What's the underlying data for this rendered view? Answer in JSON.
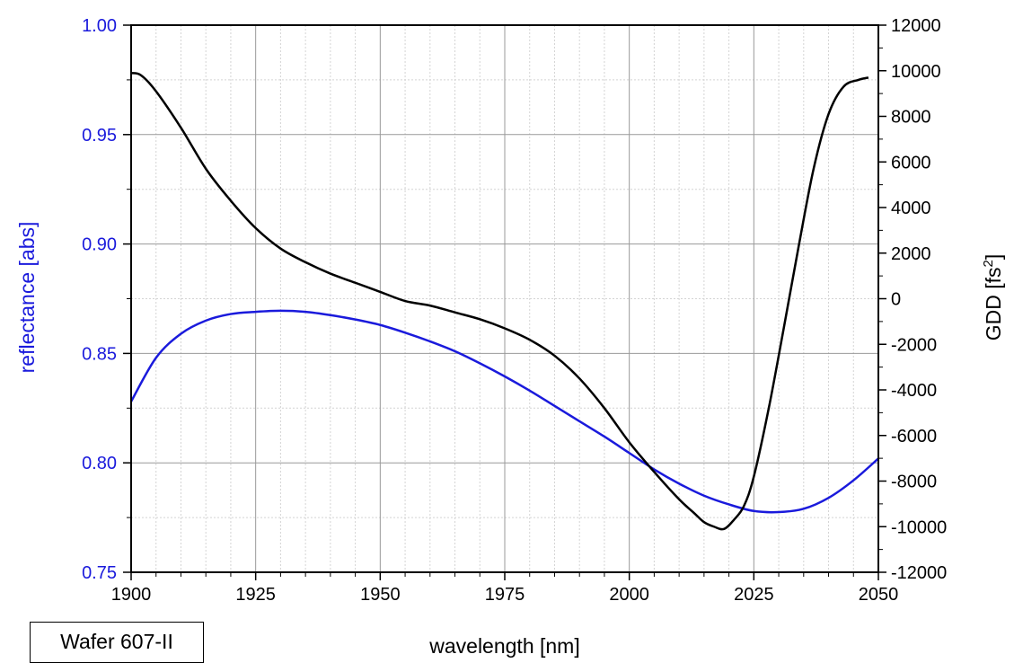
{
  "chart_data": {
    "type": "line",
    "title": "",
    "xlabel": "wavelength [nm]",
    "ylabel_left": "reflectance [abs]",
    "ylabel_right_base": "GDD [fs",
    "ylabel_right_sup": "2",
    "ylabel_right_tail": "]",
    "xlim": [
      1900,
      2050
    ],
    "ylim_left": [
      0.75,
      1.0
    ],
    "ylim_right": [
      -12000,
      12000
    ],
    "x_ticks": [
      1900,
      1925,
      1950,
      1975,
      2000,
      2025,
      2050
    ],
    "x_tick_labels": [
      "1900",
      "1925",
      "1950",
      "1975",
      "2000",
      "2025",
      "2050"
    ],
    "y_left_ticks": [
      0.75,
      0.8,
      0.85,
      0.9,
      0.95,
      1.0
    ],
    "y_left_tick_labels": [
      "0.75",
      "0.80",
      "0.85",
      "0.90",
      "0.95",
      "1.00"
    ],
    "y_right_ticks": [
      -12000,
      -10000,
      -8000,
      -6000,
      -4000,
      -2000,
      0,
      2000,
      4000,
      6000,
      8000,
      10000,
      12000
    ],
    "y_right_tick_labels": [
      "-12000",
      "-10000",
      "-8000",
      "-6000",
      "-4000",
      "-2000",
      "0",
      "2000",
      "4000",
      "6000",
      "8000",
      "10000",
      "12000"
    ],
    "grid": true,
    "series": [
      {
        "axis": "left",
        "color": "#1a1adc",
        "x": [
          1900,
          1905,
          1910,
          1915,
          1920,
          1925,
          1930,
          1935,
          1940,
          1945,
          1950,
          1955,
          1960,
          1965,
          1970,
          1975,
          1980,
          1985,
          1990,
          1995,
          2000,
          2005,
          2010,
          2015,
          2020,
          2025,
          2030,
          2035,
          2040,
          2045,
          2050
        ],
        "values": [
          0.828,
          0.848,
          0.859,
          0.865,
          0.868,
          0.869,
          0.8695,
          0.869,
          0.8675,
          0.8655,
          0.863,
          0.8595,
          0.8555,
          0.851,
          0.8455,
          0.8395,
          0.833,
          0.826,
          0.819,
          0.812,
          0.8045,
          0.797,
          0.7905,
          0.785,
          0.781,
          0.778,
          0.7775,
          0.779,
          0.784,
          0.792,
          0.802
        ]
      },
      {
        "axis": "right",
        "color": "#000000",
        "x": [
          1900,
          1902,
          1905,
          1910,
          1915,
          1920,
          1925,
          1930,
          1935,
          1940,
          1945,
          1950,
          1955,
          1960,
          1965,
          1970,
          1975,
          1980,
          1985,
          1990,
          1995,
          2000,
          2005,
          2010,
          2013,
          2015,
          2017,
          2019,
          2021,
          2023,
          2025,
          2028,
          2031,
          2034,
          2037,
          2040,
          2043,
          2046,
          2048
        ],
        "values": [
          9900,
          9800,
          9100,
          7500,
          5700,
          4300,
          3100,
          2200,
          1600,
          1100,
          700,
          300,
          -100,
          -300,
          -600,
          -900,
          -1300,
          -1800,
          -2500,
          -3500,
          -4800,
          -6300,
          -7600,
          -8800,
          -9400,
          -9800,
          -10000,
          -10100,
          -9700,
          -9100,
          -7800,
          -4800,
          -1300,
          2300,
          5700,
          8100,
          9300,
          9600,
          9700
        ]
      }
    ]
  },
  "badge": {
    "label": "Wafer 607-II"
  }
}
